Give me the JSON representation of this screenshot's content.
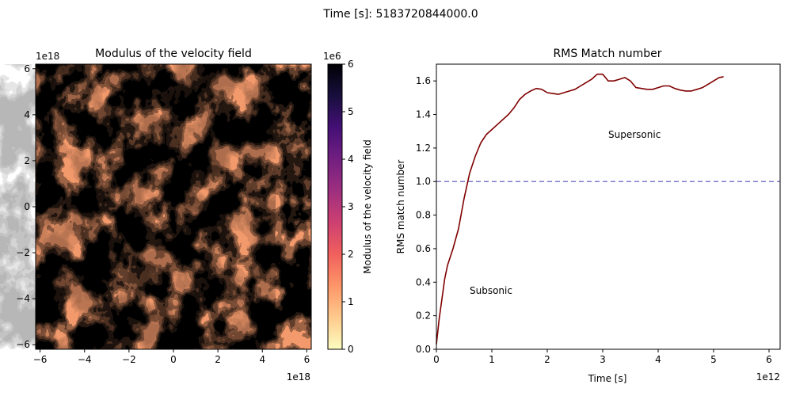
{
  "suptitle": "Time [s]: 5183720844000.0",
  "chart_data": [
    {
      "type": "heatmap",
      "title": "Modulus of the velocity field",
      "xlim": [
        -6.2,
        6.2
      ],
      "ylim": [
        -6.2,
        6.2
      ],
      "x_offset_text": "1e18",
      "y_offset_text": "1e18",
      "xticks": [
        -6,
        -4,
        -2,
        0,
        2,
        4,
        6
      ],
      "yticks": [
        -6,
        -4,
        -2,
        0,
        2,
        4,
        6
      ],
      "xtick_labels": [
        "−6",
        "−4",
        "−2",
        "0",
        "2",
        "4",
        "6"
      ],
      "ytick_labels": [
        "−6",
        "−4",
        "−2",
        "0",
        "2",
        "4",
        "6"
      ],
      "colormap": "magma_r",
      "colormap_stops": [
        "#fcfdbf",
        "#feca8d",
        "#fd9668",
        "#f1605d",
        "#cd4071",
        "#9e2f7f",
        "#721f81",
        "#440f76",
        "#180f3d",
        "#000004"
      ],
      "colorbar": {
        "label": "Modulus of the velocity field",
        "range": [
          0,
          6
        ],
        "ticks": [
          0,
          1,
          2,
          3,
          4,
          5,
          6
        ],
        "tick_labels": [
          "0",
          "1",
          "2",
          "3",
          "4",
          "5",
          "6"
        ],
        "offset_text": "1e6"
      }
    },
    {
      "type": "line",
      "title": "RMS Match number",
      "xlabel": "Time [s]",
      "ylabel": "RMS match number",
      "xlim": [
        0,
        6.2
      ],
      "ylim": [
        0,
        1.7
      ],
      "x_offset_text": "1e12",
      "xticks": [
        0,
        1,
        2,
        3,
        4,
        5,
        6
      ],
      "xtick_labels": [
        "0",
        "1",
        "2",
        "3",
        "4",
        "5",
        "6"
      ],
      "yticks": [
        0.0,
        0.2,
        0.4,
        0.6,
        0.8,
        1.0,
        1.2,
        1.4,
        1.6
      ],
      "ytick_labels": [
        "0.0",
        "0.2",
        "0.4",
        "0.6",
        "0.8",
        "1.0",
        "1.2",
        "1.4",
        "1.6"
      ],
      "series": [
        {
          "color": "#800000",
          "x": [
            0,
            0.05,
            0.1,
            0.15,
            0.2,
            0.3,
            0.4,
            0.5,
            0.6,
            0.7,
            0.8,
            0.9,
            1.0,
            1.1,
            1.2,
            1.3,
            1.4,
            1.5,
            1.6,
            1.7,
            1.8,
            1.9,
            2.0,
            2.1,
            2.2,
            2.3,
            2.4,
            2.5,
            2.6,
            2.7,
            2.8,
            2.9,
            3.0,
            3.1,
            3.2,
            3.3,
            3.4,
            3.5,
            3.6,
            3.7,
            3.8,
            3.9,
            4.0,
            4.1,
            4.2,
            4.3,
            4.4,
            4.5,
            4.6,
            4.7,
            4.8,
            4.9,
            5.0,
            5.1,
            5.18
          ],
          "y": [
            0.03,
            0.18,
            0.3,
            0.42,
            0.5,
            0.6,
            0.72,
            0.9,
            1.05,
            1.15,
            1.23,
            1.28,
            1.31,
            1.34,
            1.37,
            1.4,
            1.44,
            1.49,
            1.52,
            1.54,
            1.555,
            1.55,
            1.53,
            1.525,
            1.52,
            1.53,
            1.54,
            1.55,
            1.57,
            1.59,
            1.61,
            1.64,
            1.64,
            1.6,
            1.6,
            1.61,
            1.62,
            1.6,
            1.56,
            1.555,
            1.55,
            1.55,
            1.56,
            1.57,
            1.57,
            1.555,
            1.545,
            1.54,
            1.54,
            1.55,
            1.56,
            1.58,
            1.6,
            1.62,
            1.625
          ]
        }
      ],
      "hline": {
        "y": 1.0,
        "color": "#7b7bd0",
        "style": "dashed"
      },
      "annotations": [
        {
          "text": "Supersonic",
          "x": 3.1,
          "y": 1.28
        },
        {
          "text": "Subsonic",
          "x": 0.6,
          "y": 0.35
        }
      ]
    }
  ]
}
